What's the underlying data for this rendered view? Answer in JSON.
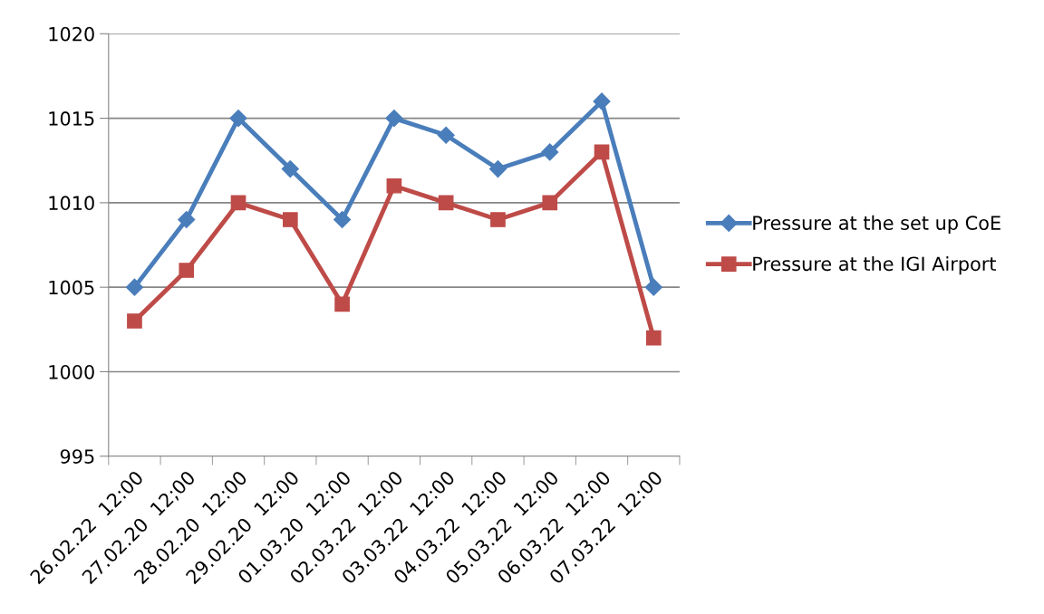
{
  "chart_data": {
    "type": "line",
    "categories": [
      "26.02.22  12:00",
      "27.02.20  12;00",
      "28.02.20  12:00",
      "29.02.20  12:00",
      "01.03.20  12:00",
      "02.03.22  12:00",
      "03.03.22  12:00",
      "04.03.22  12:00",
      "05.03.22  12:00",
      "06.03.22  12:00",
      "07.03.22  12:00"
    ],
    "series": [
      {
        "name": "Pressure at the set up CoE",
        "color": "#4a7ebb",
        "marker": "diamond",
        "values": [
          1005,
          1009,
          1015,
          1012,
          1009,
          1015,
          1014,
          1012,
          1013,
          1016,
          1005
        ]
      },
      {
        "name": "Pressure at the IGI Airport",
        "color": "#be4b48",
        "marker": "square",
        "values": [
          1003,
          1006,
          1010,
          1009,
          1004,
          1011,
          1010,
          1009,
          1010,
          1013,
          1002
        ]
      }
    ],
    "ylim": [
      995,
      1020
    ],
    "yticks": [
      995,
      1000,
      1005,
      1010,
      1015,
      1020
    ],
    "grid": "y",
    "legend": "right",
    "line_style": "solid"
  }
}
